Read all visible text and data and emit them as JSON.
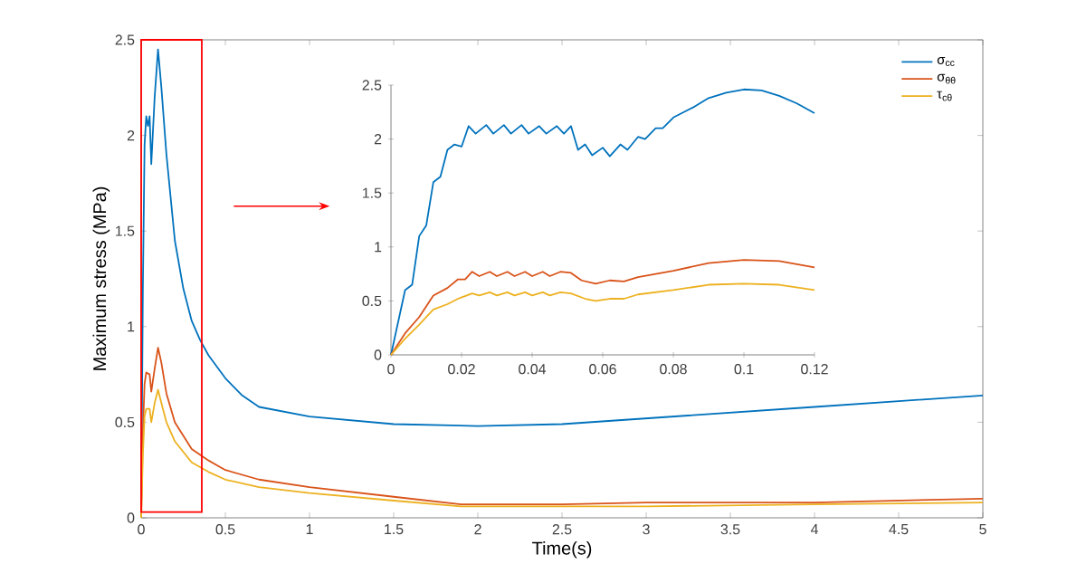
{
  "chart_data": [
    {
      "type": "line",
      "xlabel": "Time(s)",
      "ylabel": "Maximum stress (MPa)",
      "xlim": [
        0,
        5
      ],
      "ylim": [
        0,
        2.5
      ],
      "xticks": [
        0,
        0.5,
        1,
        1.5,
        2,
        2.5,
        3,
        3.5,
        4,
        4.5,
        5
      ],
      "yticks": [
        0,
        0.5,
        1,
        1.5,
        2,
        2.5
      ],
      "legend": "top right",
      "series": [
        {
          "name": "σ$_{cc}$",
          "color": "#0072bd",
          "x": [
            0,
            0.01,
            0.02,
            0.03,
            0.04,
            0.05,
            0.06,
            0.08,
            0.1,
            0.12,
            0.15,
            0.2,
            0.25,
            0.3,
            0.35,
            0.4,
            0.5,
            0.6,
            0.7,
            1,
            1.5,
            2,
            2.5,
            3,
            3.5,
            4,
            4.5,
            5
          ],
          "values": [
            0,
            1.2,
            1.95,
            2.1,
            2.05,
            2.1,
            1.85,
            2.2,
            2.45,
            2.25,
            1.9,
            1.45,
            1.2,
            1.03,
            0.93,
            0.85,
            0.73,
            0.64,
            0.58,
            0.53,
            0.49,
            0.48,
            0.49,
            0.52,
            0.55,
            0.58,
            0.61,
            0.64
          ]
        },
        {
          "name": "σ$_{θθ}$",
          "color": "#d95319",
          "x": [
            0,
            0.01,
            0.02,
            0.03,
            0.05,
            0.06,
            0.08,
            0.1,
            0.12,
            0.15,
            0.2,
            0.3,
            0.4,
            0.5,
            0.7,
            1,
            1.5,
            1.9,
            2.5,
            3,
            4,
            5
          ],
          "values": [
            0,
            0.45,
            0.7,
            0.76,
            0.75,
            0.66,
            0.78,
            0.89,
            0.81,
            0.65,
            0.5,
            0.36,
            0.3,
            0.25,
            0.2,
            0.16,
            0.11,
            0.07,
            0.07,
            0.08,
            0.08,
            0.1
          ]
        },
        {
          "name": "τ$_{cθ}$",
          "color": "#edb120",
          "x": [
            0,
            0.01,
            0.02,
            0.03,
            0.05,
            0.06,
            0.08,
            0.1,
            0.12,
            0.15,
            0.2,
            0.3,
            0.4,
            0.5,
            0.7,
            1,
            1.5,
            1.9,
            2.5,
            3,
            4,
            5
          ],
          "values": [
            0,
            0.33,
            0.53,
            0.57,
            0.57,
            0.5,
            0.6,
            0.67,
            0.6,
            0.5,
            0.4,
            0.29,
            0.24,
            0.2,
            0.16,
            0.13,
            0.09,
            0.06,
            0.06,
            0.06,
            0.07,
            0.08
          ]
        }
      ]
    },
    {
      "type": "line",
      "xlim": [
        0,
        0.12
      ],
      "ylim": [
        0,
        2.5
      ],
      "xticks": [
        0,
        0.02,
        0.04,
        0.06,
        0.08,
        0.1,
        0.12
      ],
      "yticks": [
        0,
        0.5,
        1,
        1.5,
        2,
        2.5
      ],
      "series": [
        {
          "color": "#0072bd",
          "x": [
            0,
            0.002,
            0.004,
            0.006,
            0.008,
            0.01,
            0.012,
            0.014,
            0.016,
            0.018,
            0.02,
            0.022,
            0.024,
            0.027,
            0.029,
            0.032,
            0.034,
            0.037,
            0.039,
            0.042,
            0.044,
            0.047,
            0.049,
            0.051,
            0.053,
            0.055,
            0.057,
            0.06,
            0.062,
            0.065,
            0.067,
            0.07,
            0.072,
            0.075,
            0.077,
            0.08,
            0.083,
            0.086,
            0.09,
            0.095,
            0.1,
            0.105,
            0.11,
            0.115,
            0.12
          ],
          "values": [
            0,
            0.3,
            0.6,
            0.65,
            1.1,
            1.2,
            1.6,
            1.65,
            1.9,
            1.95,
            1.93,
            2.12,
            2.05,
            2.13,
            2.05,
            2.13,
            2.05,
            2.13,
            2.05,
            2.12,
            2.05,
            2.12,
            2.05,
            2.12,
            1.9,
            1.95,
            1.85,
            1.92,
            1.84,
            1.95,
            1.9,
            2.02,
            2.0,
            2.1,
            2.1,
            2.2,
            2.25,
            2.3,
            2.38,
            2.43,
            2.46,
            2.45,
            2.4,
            2.33,
            2.24
          ]
        },
        {
          "color": "#d95319",
          "x": [
            0,
            0.004,
            0.008,
            0.012,
            0.016,
            0.019,
            0.021,
            0.023,
            0.025,
            0.028,
            0.03,
            0.033,
            0.035,
            0.038,
            0.04,
            0.043,
            0.045,
            0.048,
            0.051,
            0.054,
            0.058,
            0.062,
            0.066,
            0.07,
            0.08,
            0.09,
            0.1,
            0.11,
            0.12
          ],
          "values": [
            0,
            0.2,
            0.35,
            0.55,
            0.62,
            0.7,
            0.7,
            0.77,
            0.73,
            0.77,
            0.73,
            0.77,
            0.73,
            0.77,
            0.73,
            0.77,
            0.73,
            0.77,
            0.76,
            0.69,
            0.66,
            0.69,
            0.68,
            0.72,
            0.78,
            0.85,
            0.88,
            0.87,
            0.81
          ]
        },
        {
          "color": "#edb120",
          "x": [
            0,
            0.004,
            0.008,
            0.012,
            0.016,
            0.019,
            0.023,
            0.025,
            0.028,
            0.03,
            0.033,
            0.035,
            0.038,
            0.04,
            0.043,
            0.045,
            0.048,
            0.051,
            0.055,
            0.058,
            0.062,
            0.066,
            0.07,
            0.08,
            0.09,
            0.1,
            0.11,
            0.12
          ],
          "values": [
            0,
            0.15,
            0.28,
            0.42,
            0.47,
            0.52,
            0.57,
            0.55,
            0.58,
            0.55,
            0.58,
            0.55,
            0.58,
            0.55,
            0.58,
            0.55,
            0.58,
            0.57,
            0.52,
            0.5,
            0.52,
            0.52,
            0.56,
            0.6,
            0.65,
            0.66,
            0.65,
            0.6
          ]
        }
      ]
    }
  ]
}
